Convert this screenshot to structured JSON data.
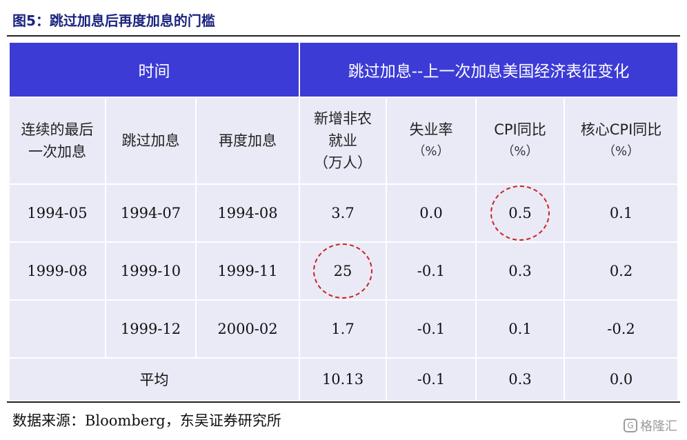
{
  "figure": {
    "title": "图5：跳过加息后再度加息的门槛",
    "source": "数据来源：Bloomberg，东吴证券研究所",
    "watermark": "格隆汇",
    "highlight_color": "#cc1f1f",
    "header_color": "#3d3bd6"
  },
  "table": {
    "header_top": {
      "time": "时间",
      "change": "跳过加息--上一次加息美国经济表征变化"
    },
    "header_sub": {
      "col1_line1": "连续的最后",
      "col1_line2": "一次加息",
      "col2": "跳过加息",
      "col3": "再度加息",
      "col4_line1": "新增非农",
      "col4_line2": "就业",
      "col4_line3": "（万人）",
      "col5": "失业率",
      "col5_unit": "（%）",
      "col6": "CPI同比",
      "col6_unit": "（%）",
      "col7": "核心CPI同比",
      "col7_unit": "（%）"
    },
    "rows": [
      {
        "last_hike": "1994-05",
        "skip": "1994-07",
        "rehike": "1994-08",
        "nfp": "3.7",
        "unemp": "0.0",
        "cpi": "0.5",
        "core_cpi": "0.1"
      },
      {
        "last_hike": "1999-08",
        "skip": "1999-10",
        "rehike": "1999-11",
        "nfp": "25",
        "unemp": "-0.1",
        "cpi": "0.3",
        "core_cpi": "0.2"
      },
      {
        "last_hike": "",
        "skip": "1999-12",
        "rehike": "2000-02",
        "nfp": "1.7",
        "unemp": "-0.1",
        "cpi": "0.1",
        "core_cpi": "-0.2"
      }
    ],
    "average": {
      "label": "平均",
      "nfp": "10.13",
      "unemp": "-0.1",
      "cpi": "0.3",
      "core_cpi": "0.0"
    }
  }
}
